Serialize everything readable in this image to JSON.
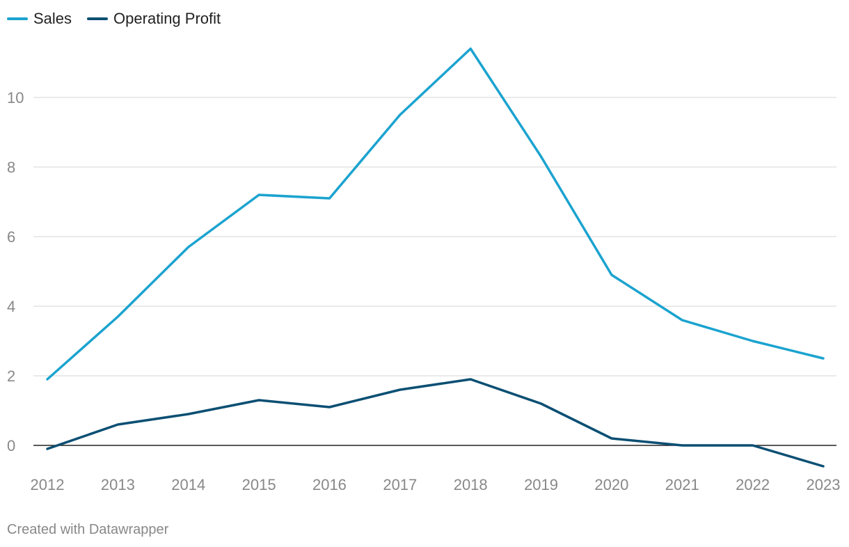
{
  "chart_data": {
    "type": "line",
    "title": "",
    "xlabel": "",
    "ylabel": "",
    "x": [
      "2012",
      "2013",
      "2014",
      "2015",
      "2016",
      "2017",
      "2018",
      "2019",
      "2020",
      "2021",
      "2022",
      "2023"
    ],
    "series": [
      {
        "name": "Sales",
        "color": "#1ba3cf",
        "values": [
          1.9,
          3.7,
          5.7,
          7.2,
          7.1,
          9.5,
          11.4,
          8.3,
          4.9,
          3.6,
          3.0,
          2.5
        ]
      },
      {
        "name": "Operating Profit",
        "color": "#0b4f73",
        "values": [
          -0.1,
          0.6,
          0.9,
          1.3,
          1.1,
          1.6,
          1.9,
          1.2,
          0.2,
          0.0,
          0.0,
          -0.6
        ]
      }
    ],
    "y_ticks": [
      0,
      2,
      4,
      6,
      8,
      10
    ],
    "ylim": [
      -0.8,
      12
    ],
    "grid": true,
    "legend": "top-left"
  },
  "footer": "Created with Datawrapper"
}
